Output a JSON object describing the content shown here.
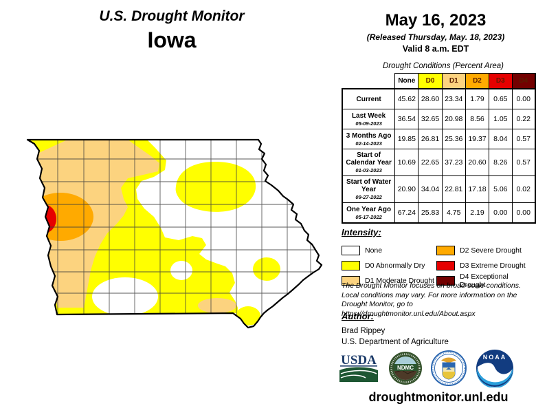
{
  "header": {
    "title": "U.S. Drought Monitor",
    "state": "Iowa"
  },
  "date_block": {
    "date": "May 16, 2023",
    "released": "(Released Thursday, May. 18, 2023)",
    "valid": "Valid 8 a.m. EDT"
  },
  "table": {
    "caption": "Drought Conditions (Percent Area)",
    "columns": [
      "None",
      "D0",
      "D1",
      "D2",
      "D3",
      "D4"
    ],
    "column_colors": [
      "#FFFFFF",
      "#FFFF00",
      "#FCD37F",
      "#FFAA00",
      "#E60000",
      "#730000"
    ],
    "rows": [
      {
        "label": "Current",
        "date": "",
        "values": [
          "45.62",
          "28.60",
          "23.34",
          "1.79",
          "0.65",
          "0.00"
        ]
      },
      {
        "label": "Last Week",
        "date": "05-09-2023",
        "values": [
          "36.54",
          "32.65",
          "20.98",
          "8.56",
          "1.05",
          "0.22"
        ]
      },
      {
        "label": "3 Months Ago",
        "date": "02-14-2023",
        "values": [
          "19.85",
          "26.81",
          "25.36",
          "19.37",
          "8.04",
          "0.57"
        ]
      },
      {
        "label": "Start of Calendar Year",
        "date": "01-03-2023",
        "values": [
          "10.69",
          "22.65",
          "37.23",
          "20.60",
          "8.26",
          "0.57"
        ]
      },
      {
        "label": "Start of Water Year",
        "date": "09-27-2022",
        "values": [
          "20.90",
          "34.04",
          "22.81",
          "17.18",
          "5.06",
          "0.02"
        ]
      },
      {
        "label": "One Year Ago",
        "date": "05-17-2022",
        "values": [
          "67.24",
          "25.83",
          "4.75",
          "2.19",
          "0.00",
          "0.00"
        ]
      }
    ]
  },
  "legend": {
    "title": "Intensity:",
    "items": [
      {
        "code": "None",
        "label": "None",
        "color": "#FFFFFF"
      },
      {
        "code": "D0",
        "label": "D0 Abnormally Dry",
        "color": "#FFFF00"
      },
      {
        "code": "D1",
        "label": "D1 Moderate Drought",
        "color": "#FCD37F"
      },
      {
        "code": "D2",
        "label": "D2 Severe Drought",
        "color": "#FFAA00"
      },
      {
        "code": "D3",
        "label": "D3 Extreme Drought",
        "color": "#E60000"
      },
      {
        "code": "D4",
        "label": "D4 Exceptional Drought",
        "color": "#730000"
      }
    ]
  },
  "map": {
    "state": "Iowa",
    "visible_intensities": [
      "None",
      "D0",
      "D1",
      "D2",
      "D3"
    ]
  },
  "disclaimer": {
    "line1": "The Drought Monitor focuses on broad-scale conditions.",
    "line2": "Local conditions may vary. For more information on the",
    "line3": "Drought Monitor, go to https://droughtmonitor.unl.edu/About.aspx"
  },
  "author_block": {
    "title": "Author:",
    "name": "Brad Rippey",
    "org": "U.S. Department of Agriculture"
  },
  "logos": [
    {
      "name": "USDA",
      "text": "USDA"
    },
    {
      "name": "NDMC",
      "text": "NDMC"
    },
    {
      "name": "U.S. Department of Commerce seal",
      "text": ""
    },
    {
      "name": "NOAA",
      "text": "NOAA"
    }
  ],
  "footer": {
    "website": "droughtmonitor.unl.edu"
  }
}
